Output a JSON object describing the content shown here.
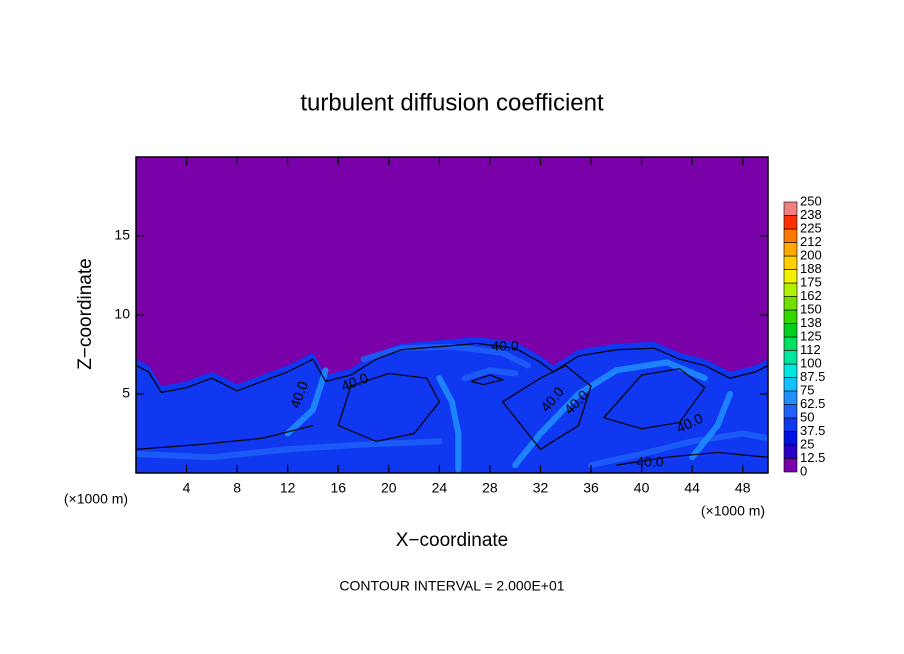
{
  "chart_data": {
    "type": "contour",
    "title": "turbulent diffusion coefficient",
    "xlabel": "X−coordinate",
    "ylabel": "Z−coordinate",
    "x_unit": "(×1000 m)",
    "z_unit": "(×1000 m)",
    "footer": "CONTOUR INTERVAL = 2.000E+01",
    "xlim": [
      0,
      50
    ],
    "xticks": [
      4,
      8,
      12,
      16,
      20,
      24,
      28,
      32,
      36,
      40,
      44,
      48
    ],
    "ylim": [
      0,
      20
    ],
    "yticks": [
      5,
      10,
      15
    ],
    "colorbar": {
      "levels": [
        0,
        12.5,
        25,
        37.5,
        50,
        62.5,
        75,
        87.5,
        100,
        112,
        125,
        138,
        150,
        162,
        175,
        188,
        200,
        212,
        225,
        238,
        250
      ],
      "colors": [
        "#7a00aa",
        "#2a00c8",
        "#0010e0",
        "#1038f0",
        "#1e60f8",
        "#2090ff",
        "#10c0ff",
        "#00e8e0",
        "#00e8a0",
        "#00e060",
        "#00d020",
        "#30d800",
        "#70e000",
        "#b0f000",
        "#f0f000",
        "#ffd000",
        "#ffa800",
        "#ff7800",
        "#ff3000",
        "#f08080"
      ]
    },
    "contour_labels": {
      "values": [
        40,
        40,
        40,
        40,
        40,
        40,
        40
      ],
      "value_labels": [
        "40.0",
        "40.0",
        "40.0",
        "40.0",
        "40.0",
        "40.0",
        "40.0"
      ]
    }
  }
}
